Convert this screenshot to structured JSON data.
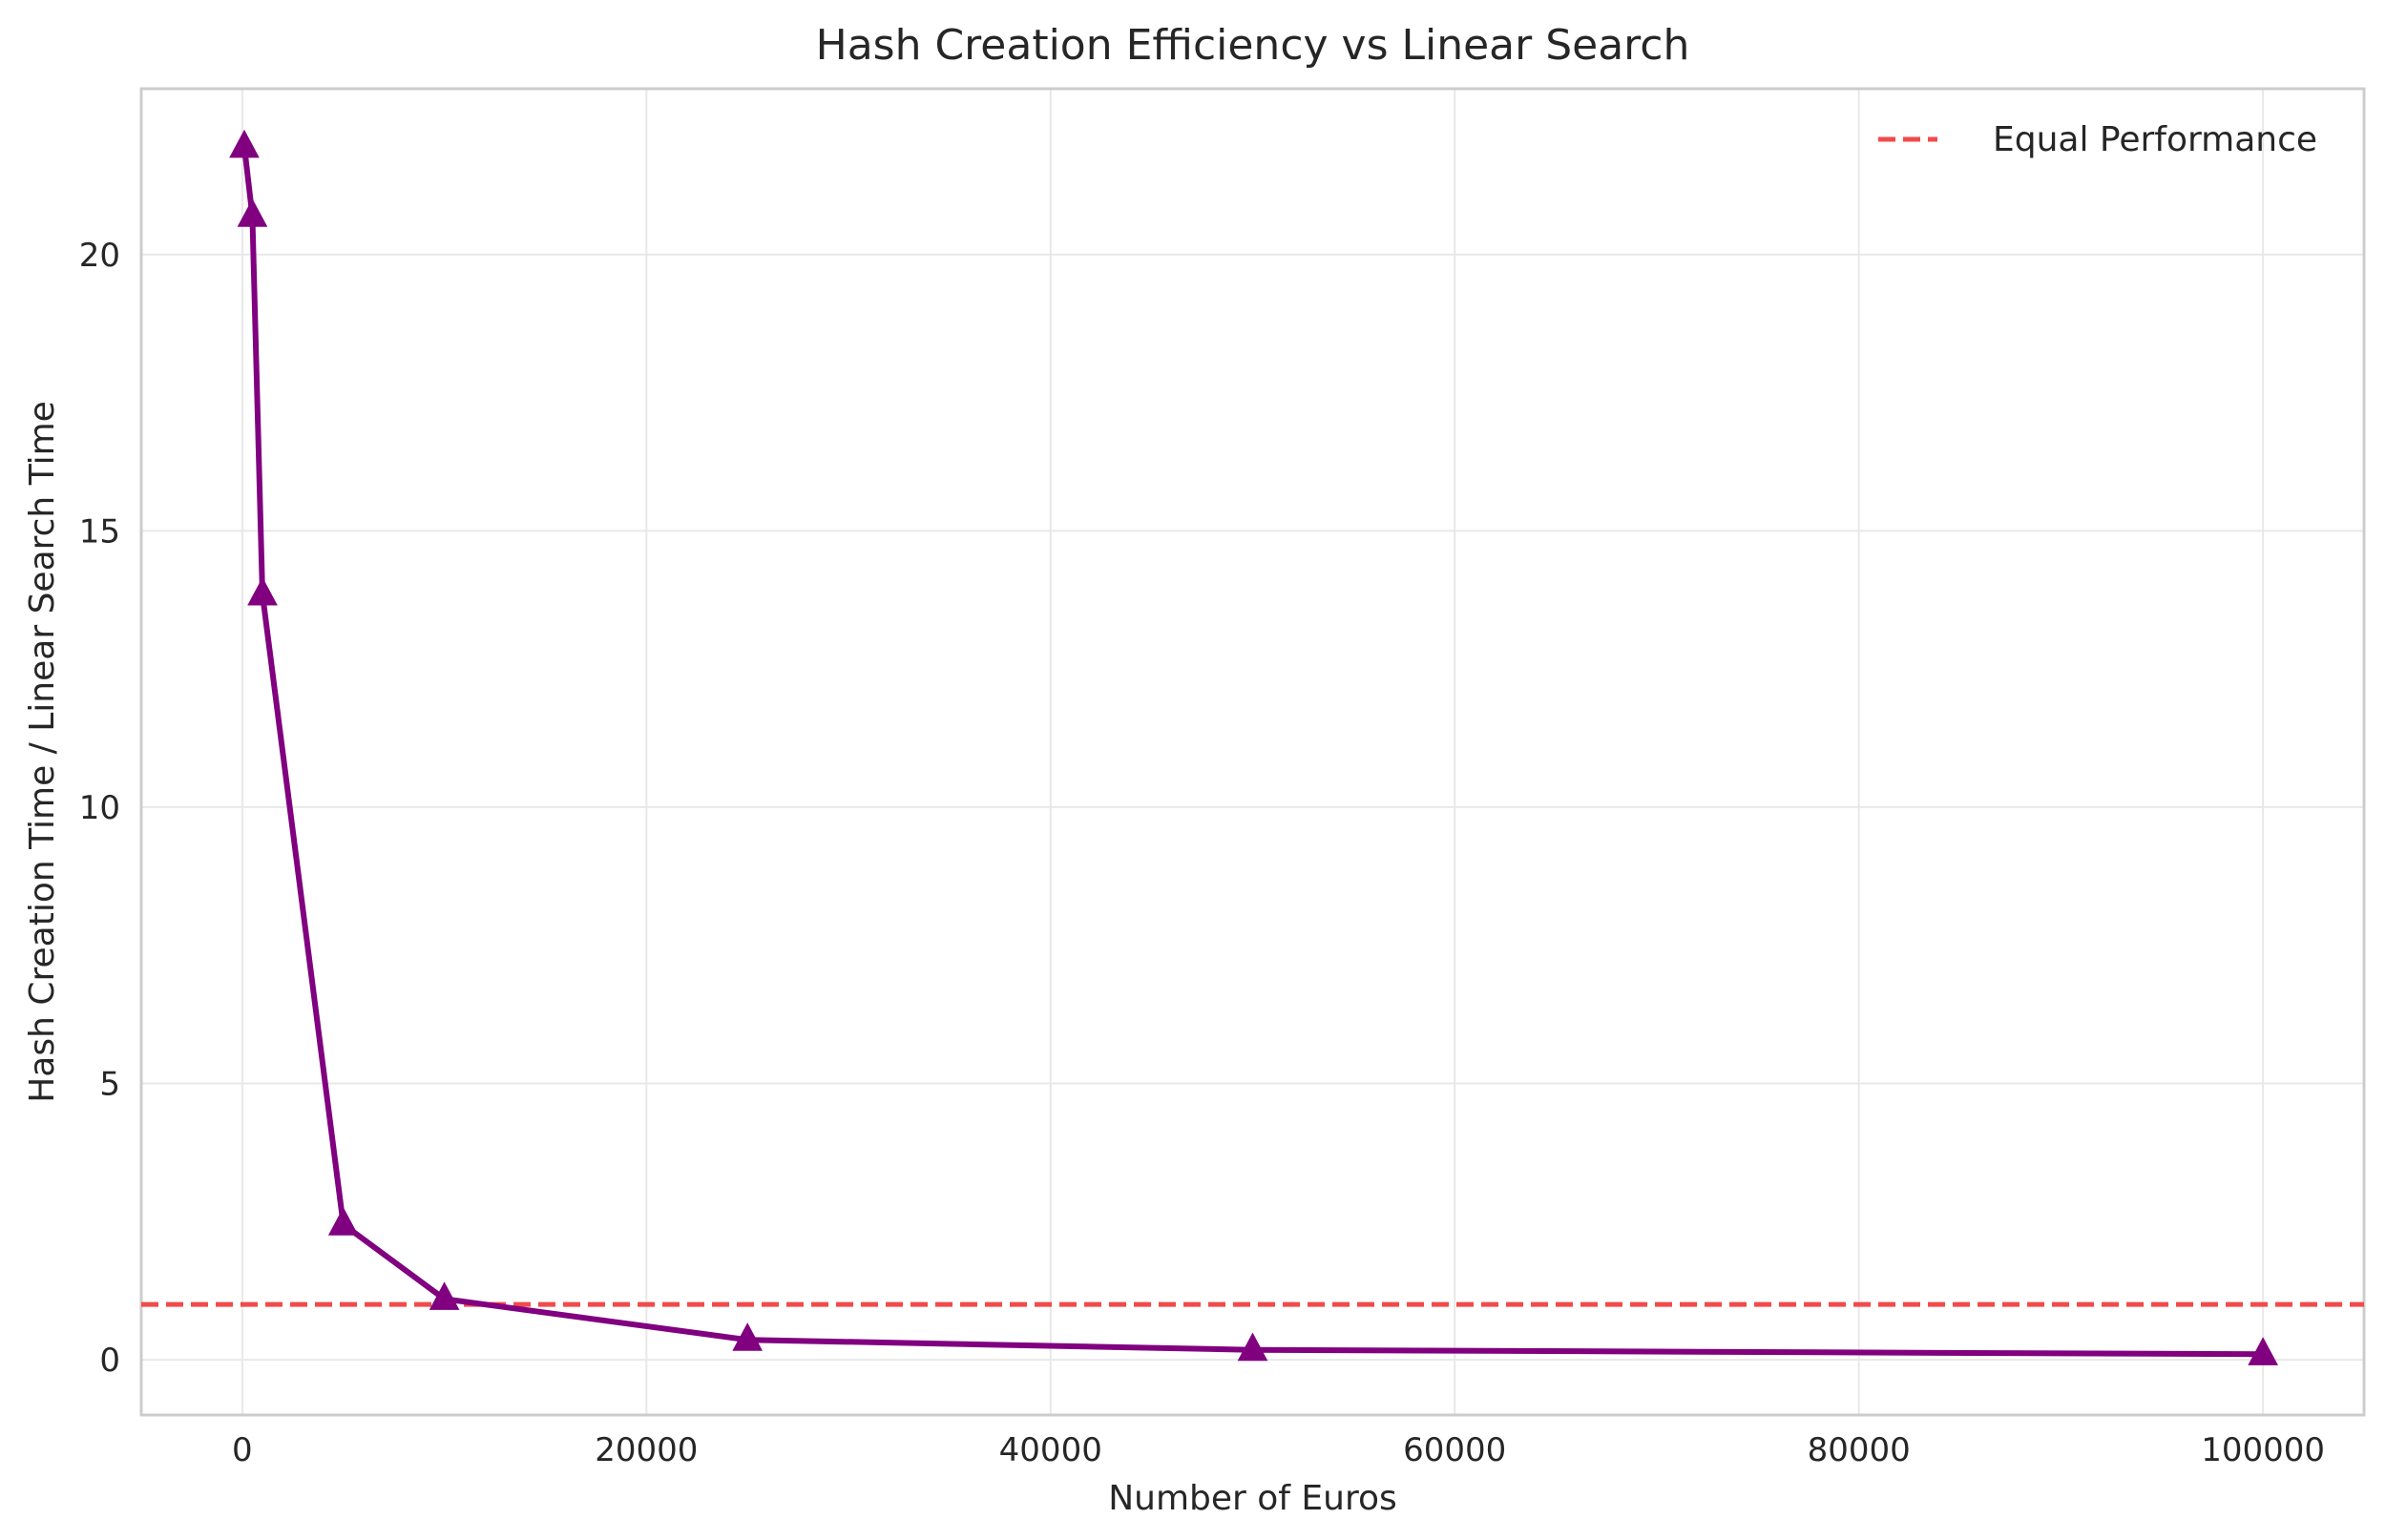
{
  "chart_data": {
    "type": "line",
    "title": "Hash Creation Efficiency vs Linear Search",
    "xlabel": "Number of Euros",
    "ylabel": "Hash Creation Time / Linear Search Time",
    "xlim": [
      -5000,
      105000
    ],
    "ylim": [
      -1.0,
      23.0
    ],
    "xticks": [
      0,
      20000,
      40000,
      60000,
      80000,
      100000
    ],
    "yticks": [
      0,
      5,
      10,
      15,
      20
    ],
    "grid": true,
    "legend_position": "top-right",
    "series": [
      {
        "color": "#800080",
        "marker": "triangle-up",
        "x": [
          100,
          500,
          1000,
          5000,
          10000,
          25000,
          50000,
          100000
        ],
        "y": [
          21.95,
          20.7,
          13.85,
          2.45,
          1.1,
          0.36,
          0.18,
          0.1
        ]
      }
    ],
    "reference_lines": [
      {
        "name": "Equal Performance",
        "y": 1.0,
        "color": "#f24a4a",
        "style": "dashed"
      }
    ]
  }
}
